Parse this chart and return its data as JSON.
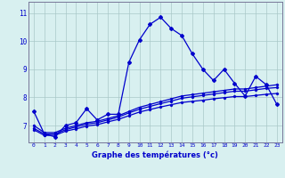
{
  "line1": [
    7.5,
    6.7,
    6.6,
    7.0,
    7.1,
    7.6,
    7.2,
    7.4,
    7.4,
    9.25,
    10.05,
    10.6,
    10.85,
    10.45,
    10.2,
    9.55,
    9.0,
    8.6,
    9.0,
    8.5,
    8.05,
    8.75,
    8.45,
    7.75
  ],
  "line2": [
    7.0,
    6.75,
    6.75,
    6.9,
    7.0,
    7.1,
    7.15,
    7.25,
    7.35,
    7.5,
    7.65,
    7.75,
    7.85,
    7.95,
    8.05,
    8.1,
    8.15,
    8.2,
    8.25,
    8.3,
    8.3,
    8.35,
    8.4,
    8.45
  ],
  "line3": [
    6.9,
    6.7,
    6.7,
    6.85,
    6.95,
    7.05,
    7.1,
    7.2,
    7.3,
    7.45,
    7.58,
    7.68,
    7.78,
    7.87,
    7.97,
    8.02,
    8.07,
    8.12,
    8.17,
    8.22,
    8.22,
    8.27,
    8.32,
    8.35
  ],
  "line4": [
    6.85,
    6.65,
    6.65,
    6.8,
    6.88,
    6.98,
    7.03,
    7.13,
    7.22,
    7.35,
    7.48,
    7.57,
    7.66,
    7.74,
    7.82,
    7.86,
    7.9,
    7.95,
    7.99,
    8.03,
    8.03,
    8.07,
    8.11,
    8.14
  ],
  "hours": [
    0,
    1,
    2,
    3,
    4,
    5,
    6,
    7,
    8,
    9,
    10,
    11,
    12,
    13,
    14,
    15,
    16,
    17,
    18,
    19,
    20,
    21,
    22,
    23
  ],
  "line_color": "#0000cc",
  "bg_color": "#d8f0f0",
  "grid_color": "#aac8c8",
  "xlabel": "Graphe des températures (°c)",
  "yticks": [
    7,
    8,
    9,
    10,
    11
  ],
  "ylim": [
    6.4,
    11.4
  ],
  "xlim": [
    -0.5,
    23.5
  ],
  "marker": "D",
  "markersize": 2.0,
  "linewidth": 0.9
}
